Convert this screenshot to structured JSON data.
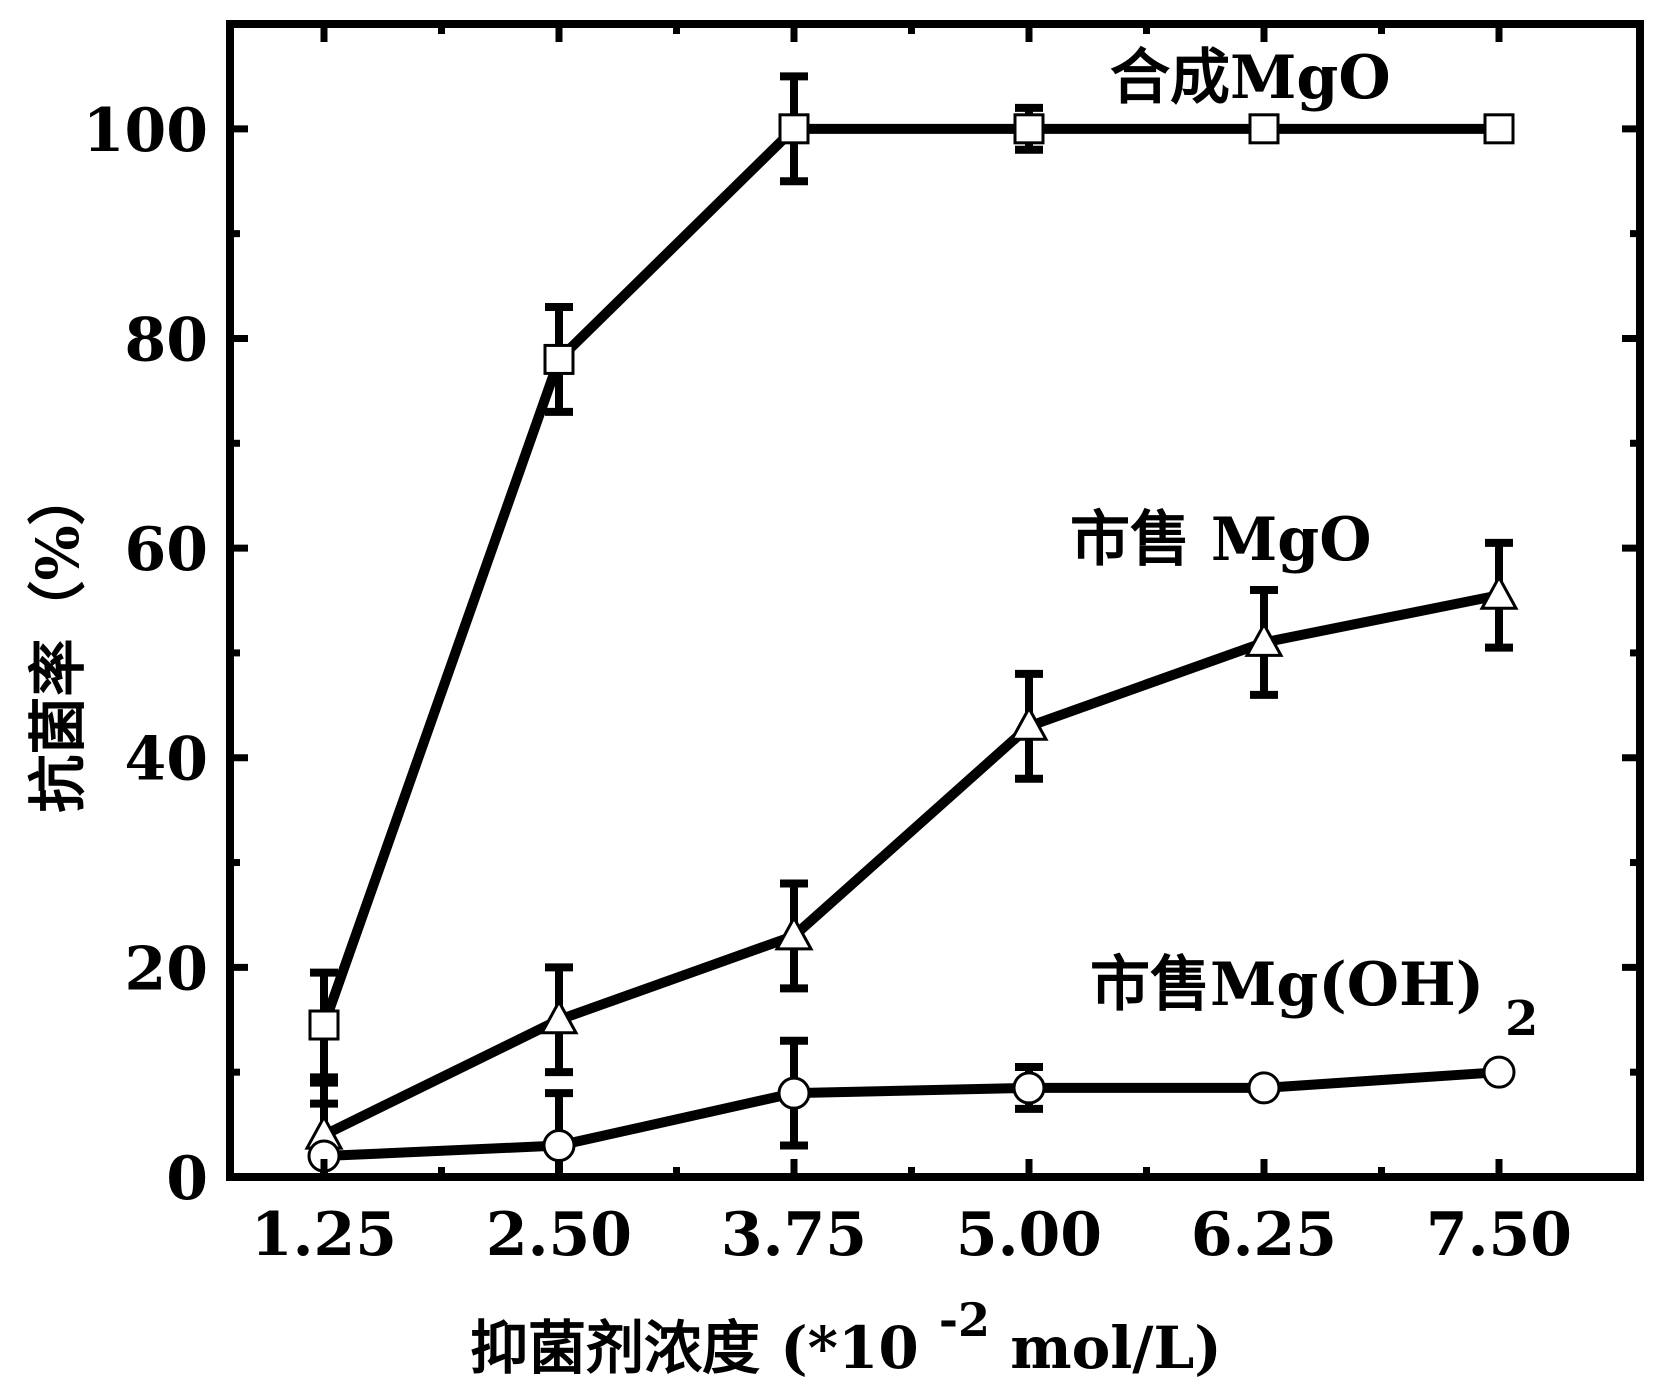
{
  "chart_data": {
    "type": "line",
    "title": "",
    "xlabel": "抑菌剂浓度 (*10",
    "xlabel_exponent": "-2",
    "xlabel_suffix": "mol/L)",
    "ylabel": "抗菌率（%）",
    "xlim": [
      0.75,
      8.25
    ],
    "ylim": [
      0,
      110
    ],
    "x_ticks": [
      "1.25",
      "2.50",
      "3.75",
      "5.00",
      "6.25",
      "7.50"
    ],
    "y_ticks": [
      "0",
      "20",
      "40",
      "60",
      "80",
      "100"
    ],
    "x": [
      1.25,
      2.5,
      3.75,
      5.0,
      6.25,
      7.5
    ],
    "grid": false,
    "series": [
      {
        "name": "合成MgO",
        "marker": "square",
        "values": [
          14.5,
          78,
          100,
          100,
          100,
          100
        ],
        "errors": [
          5,
          5,
          5,
          2,
          0,
          0
        ]
      },
      {
        "name": "市售 MgO",
        "marker": "triangle",
        "values": [
          4,
          15,
          23,
          43,
          51,
          55.5
        ],
        "errors": [
          5,
          5,
          5,
          5,
          5,
          5
        ]
      },
      {
        "name": "市售Mg(OH)",
        "name_subscript": "2",
        "marker": "circle",
        "values": [
          2,
          3,
          8,
          8.5,
          8.5,
          10
        ],
        "errors": [
          5,
          5,
          5,
          2,
          0,
          0
        ]
      }
    ]
  }
}
